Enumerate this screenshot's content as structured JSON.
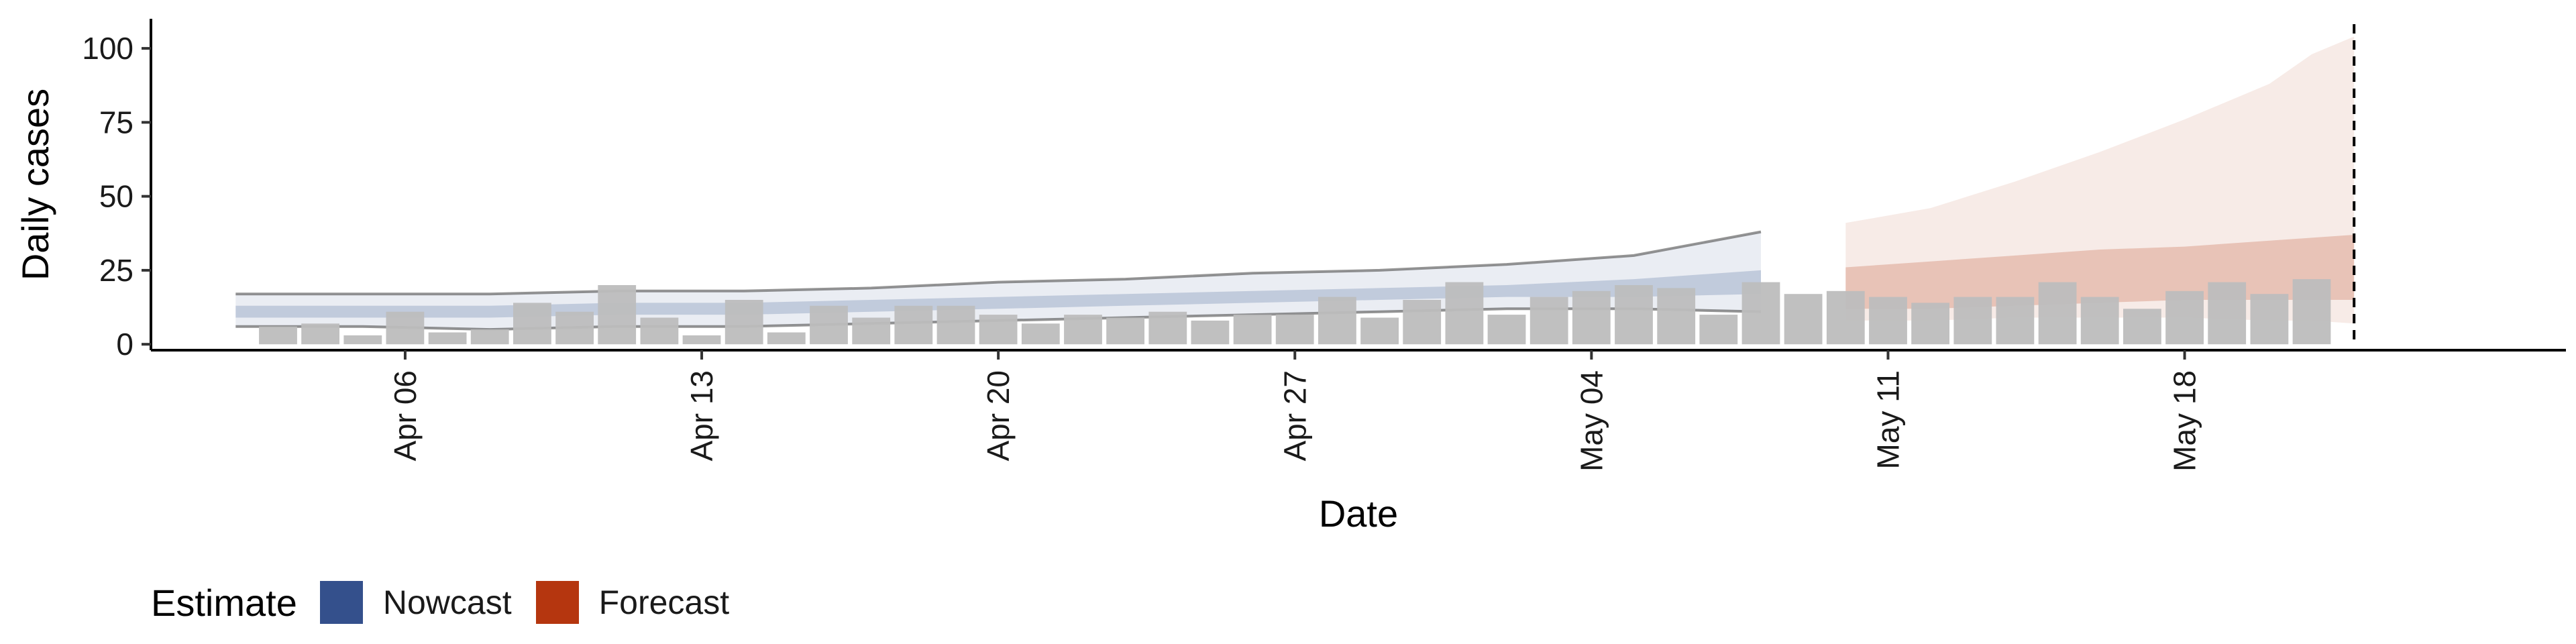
{
  "chart_data": {
    "type": "bar",
    "xlabel": "Date",
    "ylabel": "Daily cases",
    "ylim": [
      -2,
      110
    ],
    "y_ticks": [
      0,
      25,
      50,
      75,
      100
    ],
    "x_ticks": [
      "2020-04-06",
      "2020-04-13",
      "2020-04-20",
      "2020-04-27",
      "2020-05-04",
      "2020-05-11",
      "2020-05-18"
    ],
    "x_tick_labels": [
      "Apr 06",
      "Apr 13",
      "Apr 20",
      "Apr 27",
      "May 04",
      "May 11",
      "May 18"
    ],
    "xlim": [
      "2020-03-31",
      "2020-05-27"
    ],
    "reference_line_date": "2020-05-22",
    "grid": false,
    "legend_position": "bottom-left",
    "colors": {
      "bars": "#bdbdbd",
      "nowcast": "#34508c",
      "forecast": "#b5360f",
      "observed_band_line": "#8c8c8c"
    },
    "observed_cases": {
      "dates": [
        "2020-04-03",
        "2020-04-04",
        "2020-04-05",
        "2020-04-06",
        "2020-04-07",
        "2020-04-08",
        "2020-04-09",
        "2020-04-10",
        "2020-04-11",
        "2020-04-12",
        "2020-04-13",
        "2020-04-14",
        "2020-04-15",
        "2020-04-16",
        "2020-04-17",
        "2020-04-18",
        "2020-04-19",
        "2020-04-20",
        "2020-04-21",
        "2020-04-22",
        "2020-04-23",
        "2020-04-24",
        "2020-04-25",
        "2020-04-26",
        "2020-04-27",
        "2020-04-28",
        "2020-04-29",
        "2020-04-30",
        "2020-05-01",
        "2020-05-02",
        "2020-05-03",
        "2020-05-04",
        "2020-05-05",
        "2020-05-06",
        "2020-05-07",
        "2020-05-08",
        "2020-05-09",
        "2020-05-10",
        "2020-05-11",
        "2020-05-12",
        "2020-05-13",
        "2020-05-14",
        "2020-05-15",
        "2020-05-16",
        "2020-05-17",
        "2020-05-18",
        "2020-05-19",
        "2020-05-20",
        "2020-05-21",
        "2020-05-22"
      ],
      "values": [
        6,
        7,
        3,
        11,
        4,
        5,
        14,
        11,
        20,
        9,
        3,
        15,
        4,
        13,
        9,
        13,
        13,
        10,
        7,
        10,
        9,
        11,
        8,
        10,
        10,
        16,
        9,
        15,
        21,
        10,
        16,
        18,
        20,
        19,
        10,
        21,
        17,
        18,
        16,
        14,
        16,
        16,
        21,
        16,
        12,
        18,
        21,
        17,
        22,
        0
      ]
    },
    "series": [
      {
        "name": "Nowcast",
        "x": [
          "2020-04-02",
          "2020-04-05",
          "2020-04-08",
          "2020-04-11",
          "2020-04-14",
          "2020-04-17",
          "2020-04-20",
          "2020-04-23",
          "2020-04-26",
          "2020-04-29",
          "2020-05-02",
          "2020-05-05",
          "2020-05-08"
        ],
        "lower_90": [
          6,
          6,
          5,
          6,
          6,
          7,
          8,
          9,
          10,
          11,
          12,
          12,
          11
        ],
        "upper_90": [
          17,
          17,
          17,
          18,
          18,
          19,
          21,
          22,
          24,
          25,
          27,
          30,
          38
        ],
        "lower_50": [
          9,
          9,
          9,
          10,
          10,
          11,
          12,
          13,
          14,
          15,
          16,
          16,
          17
        ],
        "upper_50": [
          13,
          13,
          13,
          14,
          14,
          15,
          16,
          17,
          18,
          19,
          20,
          22,
          25
        ]
      },
      {
        "name": "Forecast",
        "x": [
          "2020-05-10",
          "2020-05-12",
          "2020-05-14",
          "2020-05-16",
          "2020-05-18",
          "2020-05-20",
          "2020-05-21",
          "2020-05-22"
        ],
        "lower_90": [
          8,
          8,
          9,
          9,
          9,
          8,
          8,
          7
        ],
        "upper_90": [
          41,
          46,
          55,
          65,
          76,
          88,
          98,
          104
        ],
        "lower_50": [
          12,
          12,
          13,
          14,
          15,
          15,
          15,
          15
        ],
        "upper_50": [
          26,
          28,
          30,
          32,
          33,
          35,
          36,
          37
        ]
      }
    ],
    "legend": {
      "title": "Estimate",
      "entries": [
        "Nowcast",
        "Forecast"
      ]
    }
  }
}
